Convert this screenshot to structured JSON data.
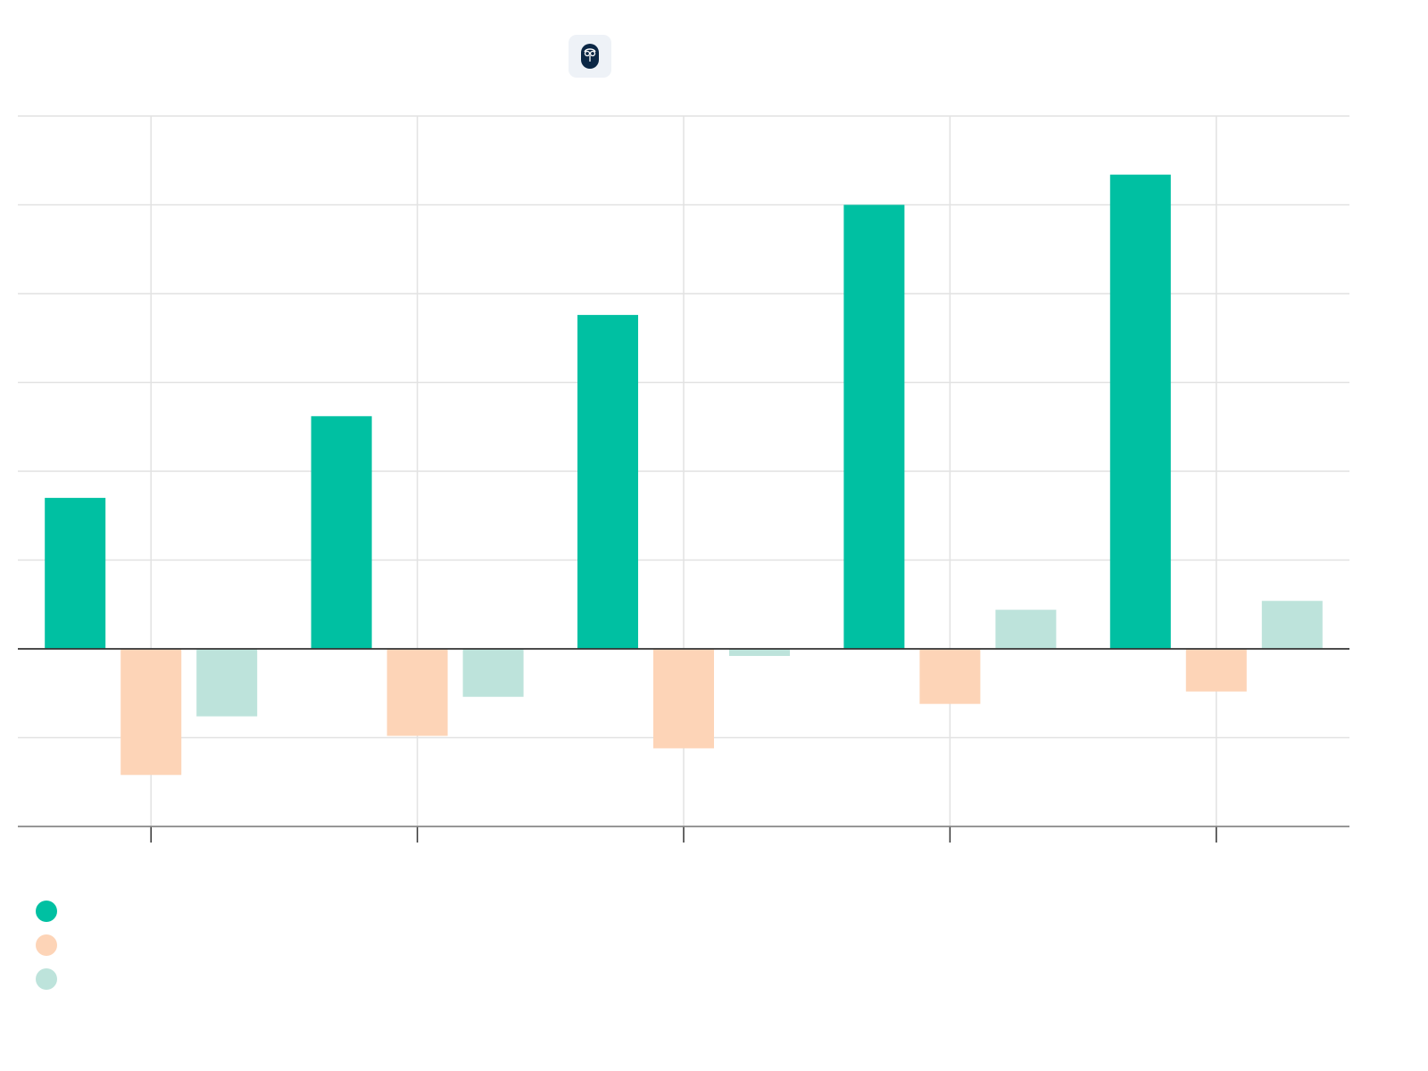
{
  "colors": {
    "series_1": "#00c0a2",
    "series_2": "#fdd4b7",
    "series_3": "#bde3db",
    "grid": "#e2e2e2",
    "axis": "#333333",
    "logo": "#0b2745"
  },
  "icons": {
    "logo": "owl-logo-icon"
  },
  "chart_data": {
    "type": "bar",
    "categories": [
      "",
      "",
      "",
      "",
      ""
    ],
    "series": [
      {
        "values": [
          85,
          131,
          188,
          250,
          267
        ]
      },
      {
        "values": [
          -71,
          -49,
          -56,
          -31,
          -24
        ]
      },
      {
        "values": [
          -38,
          -27,
          -4,
          22,
          27
        ]
      }
    ],
    "ylim": [
      -100,
      300
    ],
    "grid": true,
    "legend": "bottom-left"
  }
}
